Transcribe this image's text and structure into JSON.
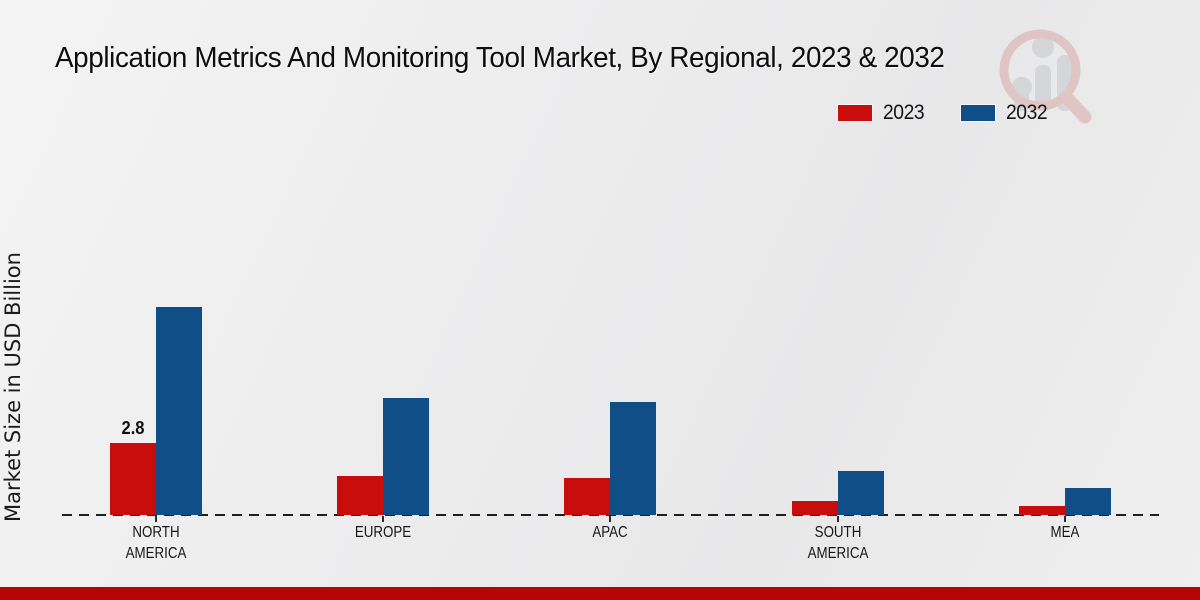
{
  "chart_data": {
    "type": "bar",
    "title": "Application Metrics And Monitoring Tool Market, By Regional, 2023 & 2032",
    "ylabel": "Market Size in USD Billion",
    "xlabel": "",
    "categories": [
      "NORTH\nAMERICA",
      "EUROPE",
      "APAC",
      "SOUTH\nAMERICA",
      "MEA"
    ],
    "series": [
      {
        "name": "2023",
        "color": "#c90c0c",
        "values": [
          2.8,
          1.5,
          1.45,
          0.55,
          0.35
        ]
      },
      {
        "name": "2032",
        "color": "#0f4e87",
        "values": [
          8.1,
          4.55,
          4.4,
          1.7,
          1.05
        ]
      }
    ],
    "bar_labels": [
      {
        "category_index": 0,
        "series_index": 0,
        "text": "2.8"
      }
    ],
    "ylim": [
      0,
      9
    ],
    "grid": false,
    "baseline_style": "dashed",
    "legend_position": "top-right"
  },
  "colors": {
    "series_2023": "#c90c0c",
    "series_2032": "#0f4e87",
    "footer_band": "#b50505",
    "background": "#ececed",
    "text": "#0e0e0e"
  },
  "watermark": {
    "icon": "magnifier-bar-chart-logo"
  }
}
